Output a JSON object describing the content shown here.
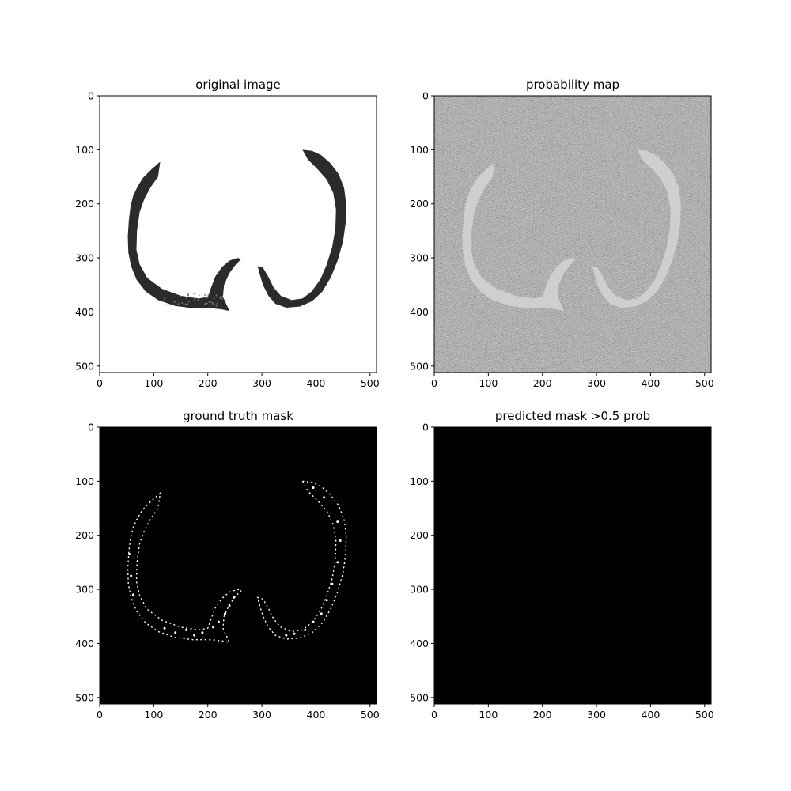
{
  "figure": {
    "background": "#ffffff",
    "image_size": 512
  },
  "chart_data": [
    {
      "type": "heatmap",
      "title": "original image",
      "content": "segmented lung crescents on white background",
      "colormap": "grayscale",
      "xlim": [
        0,
        512
      ],
      "ylim": [
        512,
        0
      ],
      "xticks": [
        0,
        100,
        200,
        300,
        400,
        500
      ],
      "yticks": [
        0,
        100,
        200,
        300,
        400,
        500
      ],
      "xlabel": "",
      "ylabel": ""
    },
    {
      "type": "heatmap",
      "title": "probability map",
      "content": "noisy gray map with lighter lung regions",
      "colormap": "grayscale",
      "xlim": [
        0,
        512
      ],
      "ylim": [
        512,
        0
      ],
      "xticks": [
        0,
        100,
        200,
        300,
        400,
        500
      ],
      "yticks": [
        0,
        100,
        200,
        300,
        400,
        500
      ],
      "xlabel": "",
      "ylabel": ""
    },
    {
      "type": "heatmap",
      "title": "ground truth mask",
      "content": "sparse white speckles along lung outlines on black",
      "colormap": "grayscale",
      "xlim": [
        0,
        512
      ],
      "ylim": [
        512,
        0
      ],
      "xticks": [
        0,
        100,
        200,
        300,
        400,
        500
      ],
      "yticks": [
        0,
        100,
        200,
        300,
        400,
        500
      ],
      "xlabel": "",
      "ylabel": ""
    },
    {
      "type": "heatmap",
      "title": "predicted mask >0.5 prob",
      "content": "all black",
      "colormap": "grayscale",
      "xlim": [
        0,
        512
      ],
      "ylim": [
        512,
        0
      ],
      "xticks": [
        0,
        100,
        200,
        300,
        400,
        500
      ],
      "yticks": [
        0,
        100,
        200,
        300,
        400,
        500
      ],
      "xlabel": "",
      "ylabel": ""
    }
  ]
}
